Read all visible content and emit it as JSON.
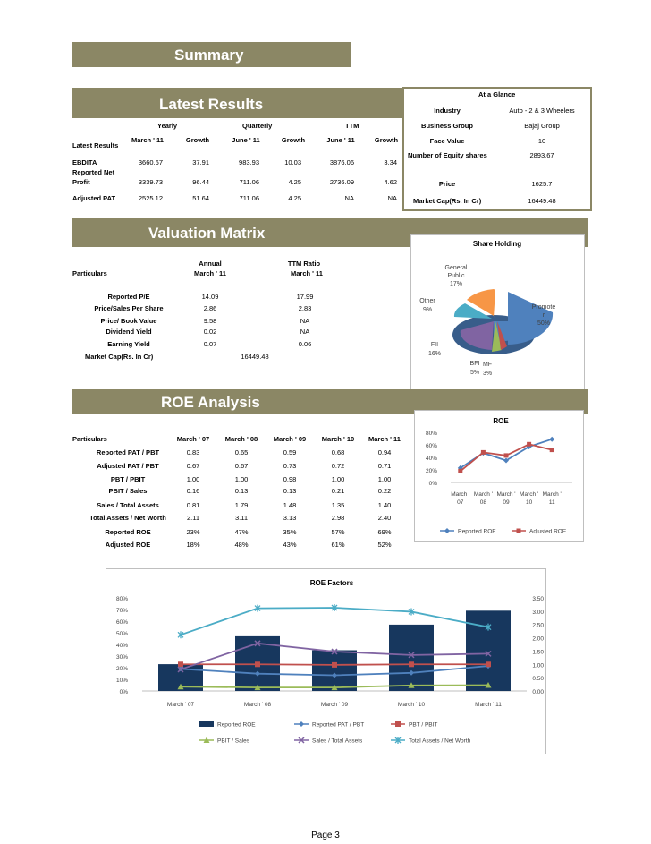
{
  "summary": {
    "title": "Summary"
  },
  "latest_results": {
    "title": "Latest Results",
    "groups": [
      "Yearly",
      "Quarterly",
      "TTM"
    ],
    "row_label_header": "Latest Results",
    "columns": [
      "March ' 11",
      "Growth",
      "June ' 11",
      "Growth",
      "June ' 11",
      "Growth"
    ],
    "rows": [
      {
        "label": "EBDITA",
        "values": [
          "3660.67",
          "37.91",
          "983.93",
          "10.03",
          "3876.06",
          "3.34"
        ]
      },
      {
        "label": "Reported Net Profit",
        "label1": "Reported Net",
        "label2": "Profit",
        "values": [
          "3339.73",
          "96.44",
          "711.06",
          "4.25",
          "2736.09",
          "4.62"
        ]
      },
      {
        "label": "Adjusted PAT",
        "values": [
          "2525.12",
          "51.64",
          "711.06",
          "4.25",
          "NA",
          "NA"
        ]
      }
    ]
  },
  "at_a_glance": {
    "title": "At a Glance",
    "rows": [
      {
        "label": "Industry",
        "value": "Auto - 2 & 3 Wheelers"
      },
      {
        "label": "Business Group",
        "value": "Bajaj Group"
      },
      {
        "label": "Face Value",
        "value": "10"
      },
      {
        "label": "Number of Equity shares",
        "value": "2893.67"
      },
      {
        "label": "Price",
        "value": "1625.7"
      },
      {
        "label": "Market Cap(Rs. In Cr)",
        "value": "16449.48"
      }
    ]
  },
  "valuation": {
    "title": "Valuation Matrix",
    "particulars": "Particulars",
    "col1_a": "Annual",
    "col1_b": "March ' 11",
    "col2_a": "TTM Ratio",
    "col2_b": "March ' 11",
    "rows": [
      {
        "label": "Reported P/E",
        "annual": "14.09",
        "ttm": "17.99"
      },
      {
        "label": "Price/Sales Per Share",
        "annual": "2.86",
        "ttm": "2.83"
      },
      {
        "label": "Price/ Book Value",
        "annual": "9.58",
        "ttm": "NA"
      },
      {
        "label": "Dividend Yield",
        "annual": "0.02",
        "ttm": "NA"
      },
      {
        "label": "Earning Yield",
        "annual": "0.07",
        "ttm": "0.06"
      }
    ],
    "market_cap_label": "Market Cap(Rs. In Cr)",
    "market_cap_value": "16449.48"
  },
  "share_holding": {
    "title": "Share Holding",
    "labels": {
      "general_public": [
        "General",
        "Public",
        "17%"
      ],
      "other": [
        "Other",
        "9%"
      ],
      "promoter": [
        "Promote",
        "r",
        "50%"
      ],
      "fii": [
        "FII",
        "16%"
      ],
      "bfi": [
        "BFI",
        "5%"
      ],
      "mf": [
        "MF",
        "3%"
      ]
    },
    "colors": {
      "promoter": "#4f81bd",
      "fii": "#8064a2",
      "bfi": "#9bbb59",
      "mf": "#c0504d",
      "other": "#4bacc6",
      "general_public": "#f79646"
    }
  },
  "roe": {
    "title": "ROE Analysis",
    "particulars": "Particulars",
    "columns": [
      "March ' 07",
      "March ' 08",
      "March ' 09",
      "March ' 10",
      "March ' 11"
    ],
    "rows": [
      {
        "label": "Reported PAT / PBT",
        "values": [
          "0.83",
          "0.65",
          "0.59",
          "0.68",
          "0.94"
        ]
      },
      {
        "label": "Adjusted PAT / PBT",
        "values": [
          "0.67",
          "0.67",
          "0.73",
          "0.72",
          "0.71"
        ]
      },
      {
        "label": "PBT / PBIT",
        "values": [
          "1.00",
          "1.00",
          "0.98",
          "1.00",
          "1.00"
        ]
      },
      {
        "label": "PBIT / Sales",
        "values": [
          "0.16",
          "0.13",
          "0.13",
          "0.21",
          "0.22"
        ]
      },
      {
        "label": "Sales / Total Assets",
        "values": [
          "0.81",
          "1.79",
          "1.48",
          "1.35",
          "1.40"
        ]
      },
      {
        "label": "Total Assets / Net Worth",
        "values": [
          "2.11",
          "3.11",
          "3.13",
          "2.98",
          "2.40"
        ]
      },
      {
        "label": "Reported ROE",
        "values": [
          "23%",
          "47%",
          "35%",
          "57%",
          "69%"
        ]
      },
      {
        "label": "Adjusted ROE",
        "values": [
          "18%",
          "48%",
          "43%",
          "61%",
          "52%"
        ]
      }
    ]
  },
  "chart_data": [
    {
      "type": "line",
      "title": "ROE",
      "categories": [
        "March ' 07",
        "March ' 08",
        "March ' 09",
        "March ' 10",
        "March ' 11"
      ],
      "category_lines": [
        [
          "March '",
          "07"
        ],
        [
          "March '",
          "08"
        ],
        [
          "March '",
          "09"
        ],
        [
          "March '",
          "10"
        ],
        [
          "March '",
          "11"
        ]
      ],
      "series": [
        {
          "name": "Reported ROE",
          "values": [
            23,
            47,
            35,
            57,
            69
          ],
          "color": "#4f81bd"
        },
        {
          "name": "Adjusted ROE",
          "values": [
            18,
            48,
            43,
            61,
            52
          ],
          "color": "#c0504d"
        }
      ],
      "ylim": [
        0,
        80
      ],
      "yticks": [
        "0%",
        "20%",
        "40%",
        "60%",
        "80%"
      ]
    },
    {
      "type": "bar+line",
      "title": "ROE Factors",
      "categories": [
        "March ' 07",
        "March ' 08",
        "March ' 09",
        "March ' 10",
        "March ' 11"
      ],
      "bar_series": {
        "name": "Reported ROE",
        "values": [
          23,
          47,
          35,
          57,
          69
        ],
        "color": "#17375e"
      },
      "line_series": [
        {
          "name": "Reported PAT / PBT",
          "values": [
            0.83,
            0.65,
            0.59,
            0.68,
            0.94
          ],
          "color": "#4f81bd",
          "marker": "diamond"
        },
        {
          "name": "PBT / PBIT",
          "values": [
            1.0,
            1.0,
            0.98,
            1.0,
            1.0
          ],
          "color": "#c0504d",
          "marker": "square"
        },
        {
          "name": "PBIT / Sales",
          "values": [
            0.16,
            0.13,
            0.13,
            0.21,
            0.22
          ],
          "color": "#9bbb59",
          "marker": "triangle"
        },
        {
          "name": "Sales / Total Assets",
          "values": [
            0.81,
            1.79,
            1.48,
            1.35,
            1.4
          ],
          "color": "#8064a2",
          "marker": "x"
        },
        {
          "name": "Total Assets / Net Worth",
          "values": [
            2.11,
            3.11,
            3.13,
            2.98,
            2.4
          ],
          "color": "#4bacc6",
          "marker": "star"
        }
      ],
      "left_ylim": [
        0,
        80
      ],
      "left_ticks": [
        "0%",
        "10%",
        "20%",
        "30%",
        "40%",
        "50%",
        "60%",
        "70%",
        "80%"
      ],
      "right_ylim": [
        0,
        3.5
      ],
      "right_ticks": [
        "0.00",
        "0.50",
        "1.00",
        "1.50",
        "2.00",
        "2.50",
        "3.00",
        "3.50"
      ]
    }
  ],
  "footer": {
    "page": "Page 3"
  }
}
